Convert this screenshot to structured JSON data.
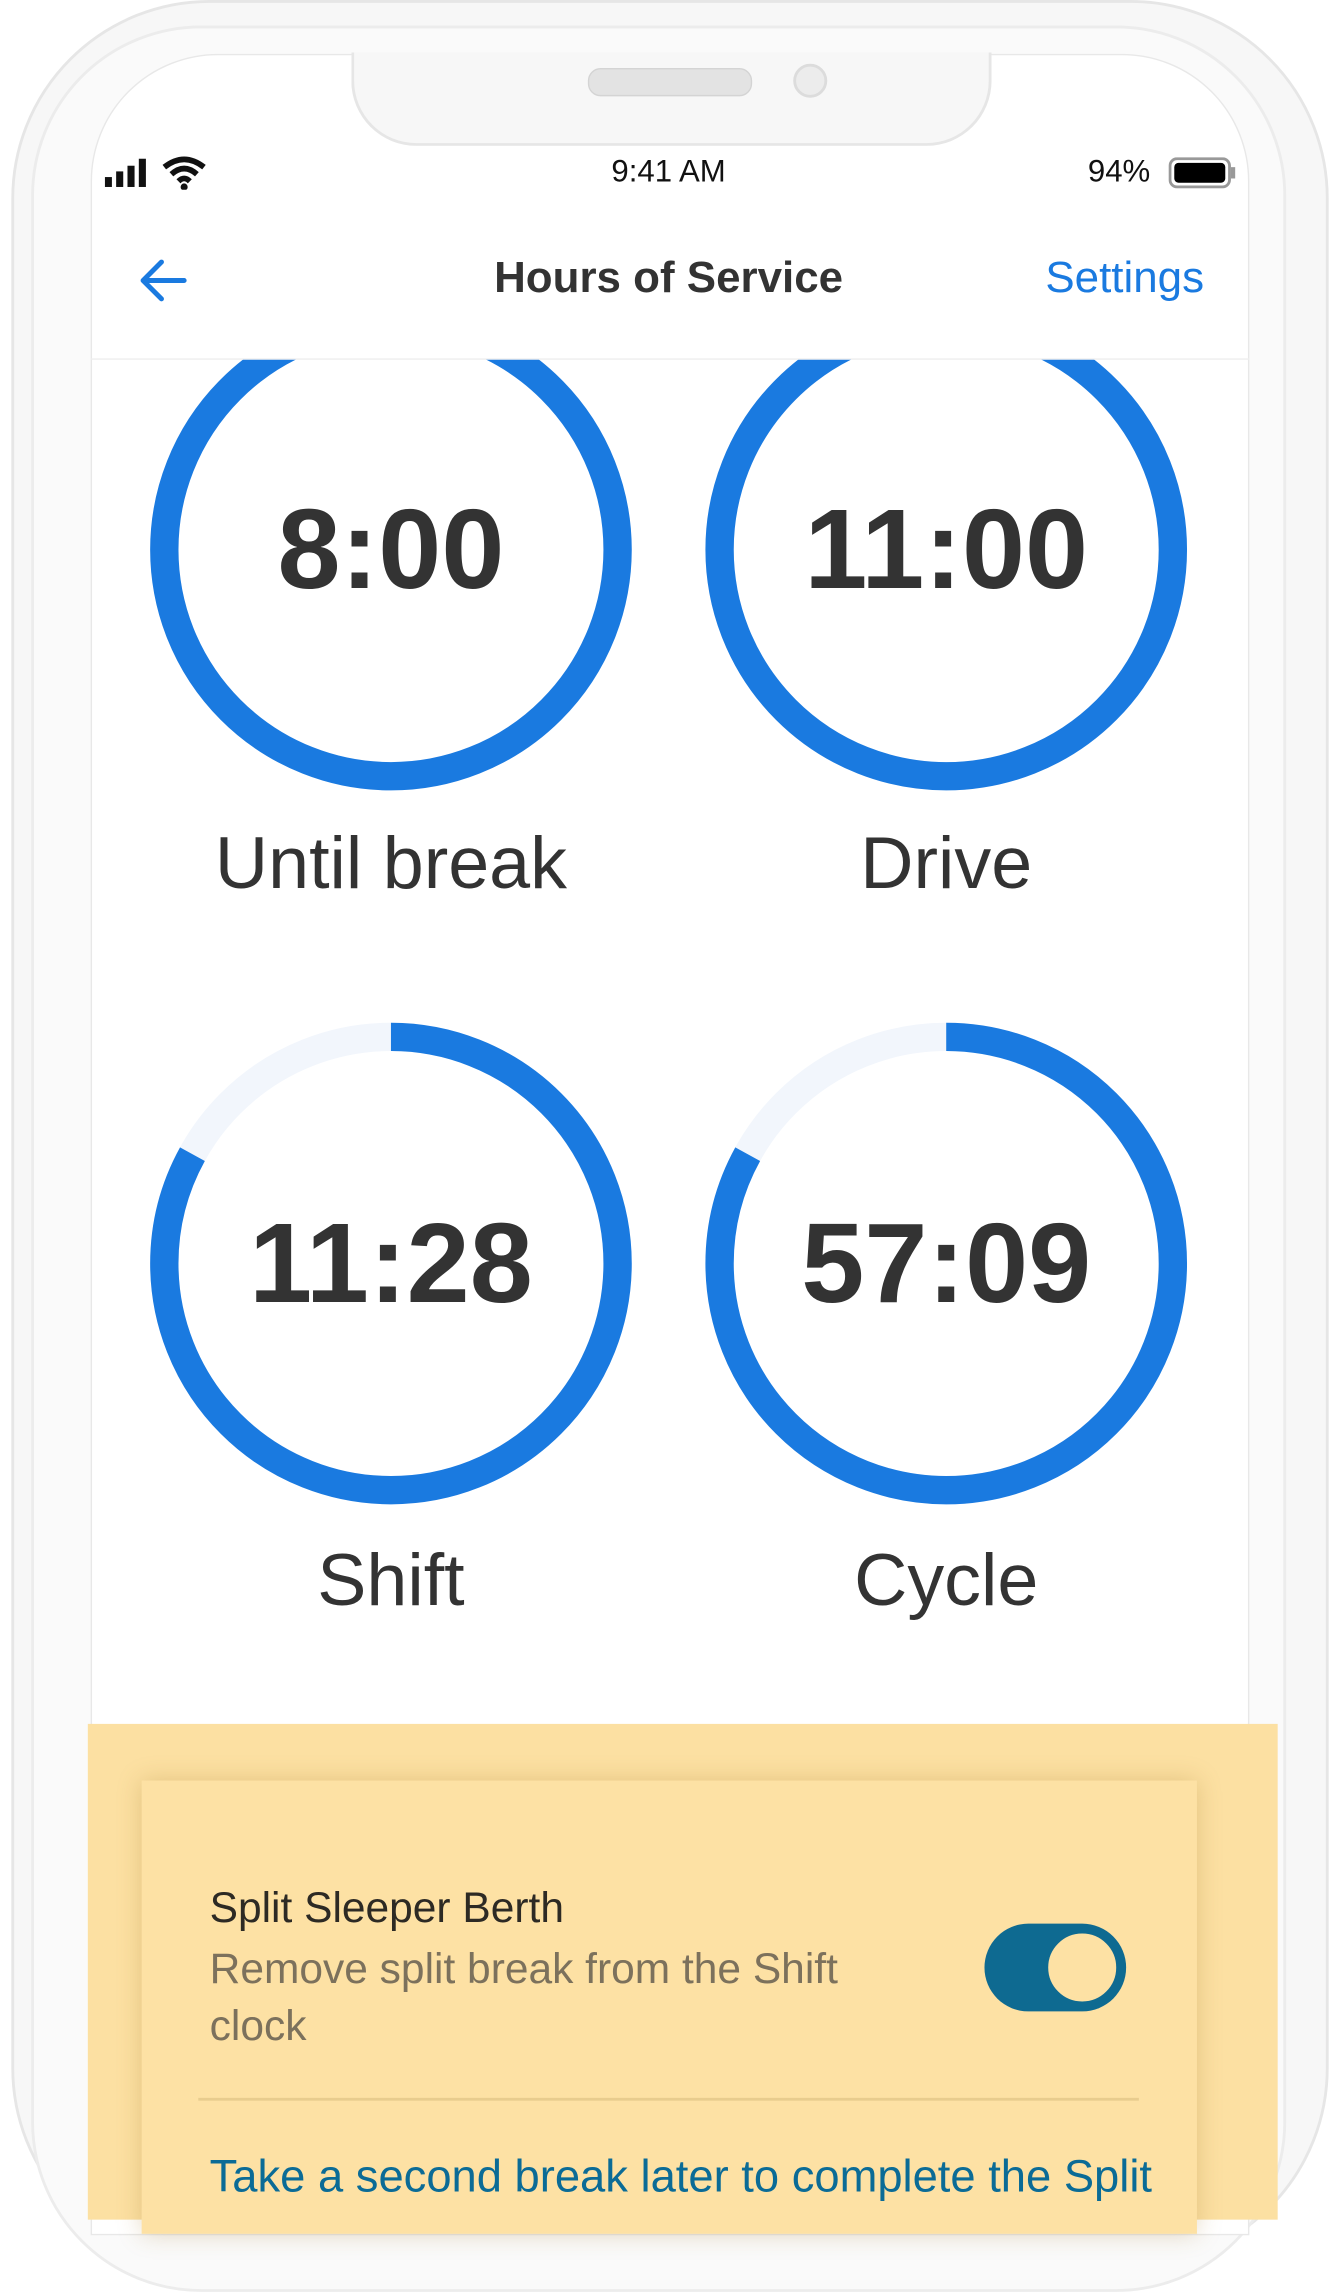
{
  "status_bar": {
    "time": "9:41 AM",
    "battery": "94%",
    "signal_icon": "cellular-signal-icon",
    "wifi_icon": "wifi-icon",
    "battery_icon": "battery-icon"
  },
  "header": {
    "title": "Hours of Service",
    "settings_label": "Settings",
    "back_icon": "arrow-left-icon"
  },
  "clocks": [
    {
      "value": "8:00",
      "label": "Until break",
      "progress": 1.0
    },
    {
      "value": "11:00",
      "label": "Drive",
      "progress": 1.0
    },
    {
      "value": "11:28",
      "label": "Shift",
      "progress": 0.83
    },
    {
      "value": "57:09",
      "label": "Cycle",
      "progress": 0.83
    }
  ],
  "colors": {
    "accent": "#1a7ae0",
    "track": "#f2f6fc",
    "banner": "#fce0a2",
    "toggle": "#0e6a91",
    "link": "#0b6b96"
  },
  "split_sleeper": {
    "title": "Split Sleeper Berth",
    "subtitle": "Remove split break from the Shift clock",
    "toggle_on": true,
    "link": "Take a second break later to complete the Split"
  }
}
